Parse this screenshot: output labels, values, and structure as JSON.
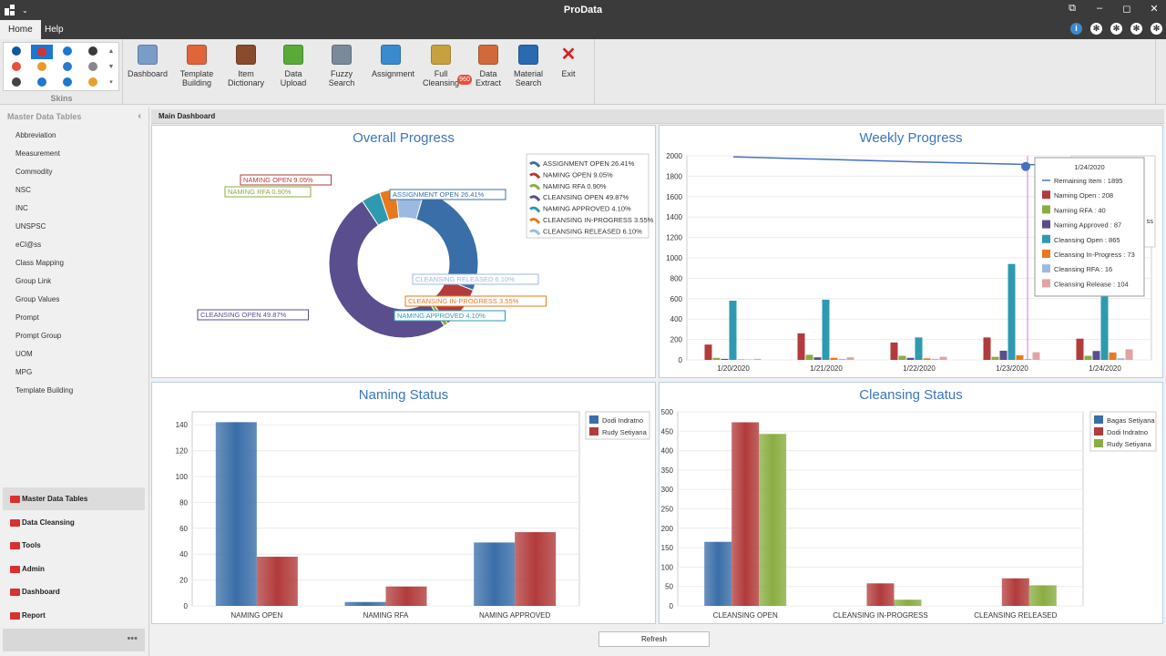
{
  "app": {
    "title": "ProData"
  },
  "window_controls": {
    "restore": "⧉",
    "minimize": "–",
    "maximize": "◻",
    "close": "✕"
  },
  "tabs": [
    {
      "label": "Home",
      "active": true
    },
    {
      "label": "Help",
      "active": false
    }
  ],
  "ribbon": {
    "skins_label": "Skins",
    "skins": [
      "#0a5c9c",
      "#d93030",
      "#1c77d2",
      "#3a3a3a",
      "#e8503a",
      "#e89a2c",
      "#2a7bd0",
      "#888888",
      "#444444",
      "#1c77d2",
      "#1c77d2",
      "#e8a02c"
    ],
    "buttons": [
      {
        "label": "Dashboard",
        "icon": "bar-chart-icon",
        "color": "#7a9cc9"
      },
      {
        "label": "Template Building",
        "icon": "template-icon",
        "color": "#e0663a"
      },
      {
        "label": "Item Dictionary",
        "icon": "book-icon",
        "color": "#8a4a2c"
      },
      {
        "label": "Data Upload",
        "icon": "upload-icon",
        "color": "#5aaa3a"
      },
      {
        "label": "Fuzzy Search",
        "icon": "fuzzy-search-icon",
        "color": "#7a8a9a"
      },
      {
        "label": "Assignment",
        "icon": "assignment-icon",
        "color": "#3a8ad0"
      },
      {
        "label": "Full Cleansing",
        "icon": "cleansing-icon",
        "color": "#c8a040"
      },
      {
        "label": "Data Extract",
        "icon": "extract-icon",
        "color": "#d06a3a"
      },
      {
        "label": "Material Search",
        "icon": "material-search-icon",
        "color": "#2a6ab0"
      },
      {
        "label": "Exit",
        "icon": "exit-icon",
        "color": "#d92020"
      }
    ],
    "badge": "960"
  },
  "sidebar": {
    "header": "Master Data Tables",
    "collapse": "‹",
    "items": [
      "Abbreviation",
      "Measurement",
      "Commodity",
      "NSC",
      "INC",
      "UNSPSC",
      "eCl@ss",
      "Class Mapping",
      "Group Link",
      "Group Values",
      "Prompt",
      "Prompt Group",
      "UOM",
      "MPG",
      "Template Building"
    ],
    "nav": [
      {
        "label": "Master Data Tables",
        "active": true
      },
      {
        "label": "Data Cleansing"
      },
      {
        "label": "Tools"
      },
      {
        "label": "Admin"
      },
      {
        "label": "Dashboard"
      },
      {
        "label": "Report"
      }
    ],
    "footer": "•••"
  },
  "main": {
    "tab_label": "Main Dashboard",
    "refresh": "Refresh"
  },
  "colors": {
    "blue": "#3a6ea8",
    "red": "#b23b3b",
    "green": "#8aad42",
    "purple": "#5a4e8e",
    "teal": "#2e9ab0",
    "orange": "#e8791e",
    "lightblue": "#9db9e2",
    "pink": "#e3a2a2",
    "line": "#4472c4"
  },
  "chart_data": [
    {
      "type": "pie",
      "title": "Overall Progress",
      "legend_placement": "right",
      "labels": [
        "ASSIGNMENT OPEN 26.41%",
        "NAMING OPEN 9.05%",
        "NAMING RFA 0.90%",
        "CLEANSING OPEN 49.87%",
        "NAMING APPROVED 4.10%",
        "CLEANSING IN-PROGRESS 3.55%",
        "CLEANSING RELEASED 6.10%"
      ],
      "values": [
        26.41,
        9.05,
        0.9,
        49.87,
        4.1,
        3.55,
        6.1
      ]
    },
    {
      "type": "bar",
      "title": "Weekly Progress",
      "categories": [
        "1/20/2020",
        "1/21/2020",
        "1/22/2020",
        "1/23/2020",
        "1/24/2020"
      ],
      "ylim": [
        0,
        2000
      ],
      "yticks": [
        "0",
        "200",
        "400",
        "600",
        "800",
        "1000",
        "1200",
        "1400",
        "1600",
        "1800",
        "2000"
      ],
      "line": {
        "name": "Remaining Item",
        "values": [
          1990,
          1965,
          1940,
          1918,
          1895
        ]
      },
      "series": [
        {
          "name": "Naming Open",
          "values": [
            150,
            260,
            170,
            220,
            208
          ]
        },
        {
          "name": "Naming RFA",
          "values": [
            20,
            50,
            40,
            30,
            40
          ]
        },
        {
          "name": "Naming Approved",
          "values": [
            10,
            25,
            20,
            90,
            87
          ]
        },
        {
          "name": "Cleansing Open",
          "values": [
            580,
            590,
            220,
            940,
            865
          ]
        },
        {
          "name": "Cleansing In-Progress",
          "values": [
            5,
            20,
            15,
            45,
            73
          ]
        },
        {
          "name": "Cleansing RFA",
          "values": [
            5,
            10,
            10,
            10,
            16
          ]
        },
        {
          "name": "Cleansing Release",
          "values": [
            10,
            25,
            30,
            75,
            104
          ]
        }
      ],
      "tooltip": {
        "title": "1/24/2020",
        "rows": [
          "Remaining Item : 1895",
          "Naming Open : 208",
          "Naming RFA : 40",
          "Naming Approved : 87",
          "Cleansing Open : 865",
          "Cleansing In-Progress : 73",
          "Cleansing RFA : 16",
          "Cleansing Release : 104"
        ]
      },
      "legend_peek": "ss"
    },
    {
      "type": "bar",
      "title": "Naming Status",
      "categories": [
        "NAMING OPEN",
        "NAMING RFA",
        "NAMING APPROVED"
      ],
      "ylim": [
        0,
        150
      ],
      "yticks": [
        "0",
        "20",
        "40",
        "60",
        "80",
        "100",
        "120",
        "140"
      ],
      "legend_placement": "top-right",
      "series": [
        {
          "name": "Dodi Indratno",
          "values": [
            142,
            3,
            49
          ]
        },
        {
          "name": "Rudy Setiyana",
          "values": [
            38,
            15,
            57
          ]
        }
      ]
    },
    {
      "type": "bar",
      "title": "Cleansing Status",
      "categories": [
        "CLEANSING OPEN",
        "CLEANSING IN-PROGRESS",
        "CLEANSING RELEASED"
      ],
      "ylim": [
        0,
        500
      ],
      "yticks": [
        "0",
        "50",
        "100",
        "150",
        "200",
        "250",
        "300",
        "350",
        "400",
        "450",
        "500"
      ],
      "legend_placement": "top-right",
      "series": [
        {
          "name": "Bagas Setiyana",
          "values": [
            165,
            0,
            0
          ]
        },
        {
          "name": "Dodi Indratno",
          "values": [
            473,
            58,
            71
          ]
        },
        {
          "name": "Rudy Setiyana",
          "values": [
            443,
            16,
            53
          ]
        }
      ]
    }
  ]
}
